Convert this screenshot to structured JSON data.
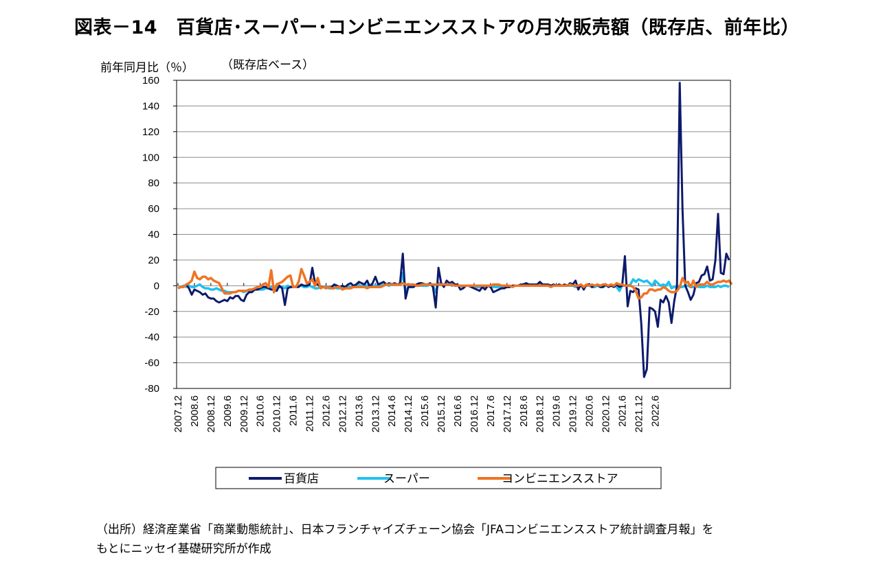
{
  "title": "図表－14　百貨店･スーパー･コンビニエンスストアの月次販売額（既存店、前年比）",
  "unit_label": "前年同月比（％）",
  "sub_label": "（既存店ベース）",
  "source": {
    "line1": "（出所）経済産業省「商業動態統計」、日本フランチャイズチェーン協会「JFAコンビニエンスストア統計調査月報」を",
    "line2": "もとにニッセイ基礎研究所が作成"
  },
  "chart_data": {
    "type": "line",
    "ylim": [
      -80,
      160
    ],
    "y_ticks": [
      "160",
      "140",
      "120",
      "100",
      "80",
      "60",
      "40",
      "20",
      "0",
      "-20",
      "-40",
      "-60",
      "-80"
    ],
    "x_tick_labels": [
      "2007.12",
      "2008.6",
      "2008.12",
      "2009.6",
      "2009.12",
      "2010.6",
      "2010.12",
      "2011.6",
      "2011.12",
      "2012.6",
      "2012.12",
      "2013.6",
      "2013.12",
      "2014.6",
      "2014.12",
      "2015.6",
      "2015.12",
      "2016.6",
      "2016.12",
      "2017.6",
      "2017.12",
      "2018.6",
      "2018.12",
      "2019.6",
      "2019.12",
      "2020.6",
      "2020.12",
      "2021.6",
      "2021.12",
      "2022.6"
    ],
    "x_start": "2007.12",
    "grid": true,
    "legend": "bottom",
    "series": [
      {
        "name": "百貨店",
        "color": "#0d1a6b",
        "key": "dept"
      },
      {
        "name": "スーパー",
        "color": "#21c1ee",
        "key": "super"
      },
      {
        "name": "コンビニエンスストア",
        "color": "#f07322",
        "key": "cvs"
      }
    ],
    "dept": [
      -2,
      -1,
      -1,
      1,
      -2,
      -7,
      -3,
      -4,
      -5,
      -7,
      -6,
      -9,
      -10,
      -10,
      -12,
      -13,
      -12,
      -11,
      -12,
      -9,
      -10,
      -8,
      -8,
      -11,
      -12,
      -7,
      -5,
      -5,
      -3,
      -3,
      -2,
      -1,
      -1,
      -2,
      -3,
      -3,
      -4,
      0,
      -2,
      -15,
      -2,
      -1,
      -1,
      -1,
      -1,
      1,
      0,
      0,
      1,
      14,
      2,
      1,
      -1,
      -1,
      -2,
      -1,
      -1,
      1,
      0,
      -1,
      0,
      -1,
      1,
      2,
      0,
      1,
      3,
      2,
      1,
      4,
      -1,
      2,
      7,
      1,
      2,
      3,
      1,
      2,
      1,
      2,
      1,
      2,
      25,
      -10,
      -1,
      -1,
      -1,
      1,
      2,
      2,
      1,
      1,
      2,
      -1,
      -17,
      14,
      2,
      -1,
      4,
      2,
      3,
      1,
      1,
      -3,
      -2,
      0,
      0,
      -1,
      -2,
      -3,
      -4,
      -1,
      -3,
      0,
      -1,
      -5,
      -4,
      -3,
      -2,
      -2,
      -1,
      -1,
      0,
      0,
      0,
      1,
      1,
      2,
      1,
      1,
      1,
      1,
      3,
      1,
      1,
      1,
      0,
      1,
      0,
      1,
      0,
      1,
      0,
      2,
      1,
      4,
      -3,
      1,
      -3,
      1,
      1,
      -1,
      0,
      1,
      -1,
      -1,
      1,
      -1,
      0,
      -1,
      1,
      -1,
      0,
      23,
      -16,
      -4,
      -5,
      -2,
      -3,
      -30,
      -71,
      -65,
      -17,
      -18,
      -20,
      -32,
      -11,
      -13,
      -8,
      -13,
      -29,
      -12,
      0,
      158,
      60,
      0,
      -5,
      -11,
      -7,
      2,
      3,
      8,
      9,
      15,
      4,
      5,
      20,
      56,
      10,
      9,
      25,
      20
    ],
    "super": [
      -2,
      -1,
      0,
      -1,
      0,
      -1,
      -1,
      0,
      1,
      -1,
      -2,
      -2,
      -3,
      -3,
      -2,
      -3,
      -4,
      -4,
      -5,
      -5,
      -5,
      -5,
      -4,
      -4,
      -5,
      -4,
      -4,
      -4,
      -3,
      -3,
      -3,
      -3,
      -2,
      -2,
      -1,
      -1,
      -1,
      -1,
      -1,
      -2,
      0,
      -1,
      -1,
      -1,
      0,
      0,
      -1,
      -1,
      0,
      -1,
      -2,
      -2,
      -1,
      -1,
      -1,
      -2,
      -2,
      -1,
      -2,
      -2,
      -1,
      -1,
      -1,
      -1,
      -1,
      0,
      0,
      0,
      0,
      0,
      1,
      0,
      0,
      0,
      0,
      1,
      1,
      0,
      1,
      1,
      1,
      1,
      10,
      -5,
      -1,
      -1,
      0,
      0,
      0,
      0,
      0,
      0,
      1,
      0,
      -5,
      2,
      1,
      0,
      1,
      1,
      0,
      1,
      0,
      0,
      -1,
      0,
      0,
      -1,
      0,
      -1,
      -1,
      0,
      -1,
      0,
      0,
      -1,
      -1,
      -1,
      -1,
      -1,
      0,
      -1,
      0,
      0,
      0,
      0,
      0,
      0,
      0,
      0,
      0,
      0,
      0,
      0,
      0,
      0,
      0,
      0,
      0,
      0,
      0,
      0,
      0,
      0,
      0,
      -1,
      0,
      0,
      -1,
      0,
      0,
      -1,
      -1,
      0,
      -1,
      -1,
      0,
      0,
      0,
      0,
      -1,
      -4,
      0,
      0,
      0,
      1,
      5,
      3,
      5,
      4,
      3,
      4,
      2,
      0,
      4,
      2,
      0,
      1,
      0,
      3,
      -2,
      -1,
      0,
      -1,
      -1,
      0,
      0,
      -1,
      -1,
      0,
      -1,
      -1,
      -1,
      0,
      -1,
      -1,
      -1,
      0,
      -1,
      0,
      0,
      -1
    ],
    "cvs": [
      -2,
      -1,
      -1,
      1,
      2,
      4,
      11,
      6,
      5,
      7,
      7,
      5,
      6,
      4,
      3,
      2,
      -2,
      -6,
      -6,
      -6,
      -5,
      -5,
      -4,
      -4,
      -4,
      -4,
      -3,
      -3,
      -2,
      -1,
      -1,
      1,
      2,
      -1,
      12,
      -5,
      1,
      2,
      3,
      5,
      7,
      8,
      -1,
      -1,
      3,
      13,
      8,
      2,
      3,
      5,
      0,
      6,
      -2,
      -1,
      -2,
      -1,
      -2,
      -2,
      -1,
      -1,
      -3,
      -2,
      -2,
      -2,
      -1,
      -1,
      -1,
      -1,
      -1,
      -2,
      -1,
      -1,
      -1,
      -1,
      -1,
      0,
      1,
      1,
      1,
      1,
      1,
      1,
      2,
      1,
      1,
      1,
      1,
      0,
      0,
      1,
      1,
      1,
      1,
      1,
      1,
      1,
      1,
      1,
      1,
      1,
      1,
      0,
      0,
      0,
      0,
      0,
      0,
      0,
      0,
      0,
      0,
      0,
      0,
      0,
      0,
      1,
      1,
      1,
      0,
      0,
      0,
      0,
      -1,
      0,
      0,
      0,
      0,
      0,
      0,
      0,
      0,
      0,
      0,
      0,
      0,
      0,
      -1,
      0,
      0,
      0,
      0,
      0,
      0,
      1,
      0,
      0,
      0,
      1,
      -1,
      1,
      0,
      1,
      0,
      1,
      0,
      1,
      1,
      0,
      1,
      0,
      2,
      1,
      1,
      0,
      0,
      0,
      -1,
      -4,
      -10,
      -9,
      -6,
      -6,
      -3,
      -3,
      -4,
      -3,
      -3,
      -1,
      -2,
      -4,
      -5,
      -5,
      -4,
      -1,
      6,
      2,
      3,
      -1,
      4,
      -1,
      1,
      1,
      1,
      3,
      1,
      1,
      2,
      3,
      3,
      4,
      3,
      4,
      1
    ]
  }
}
